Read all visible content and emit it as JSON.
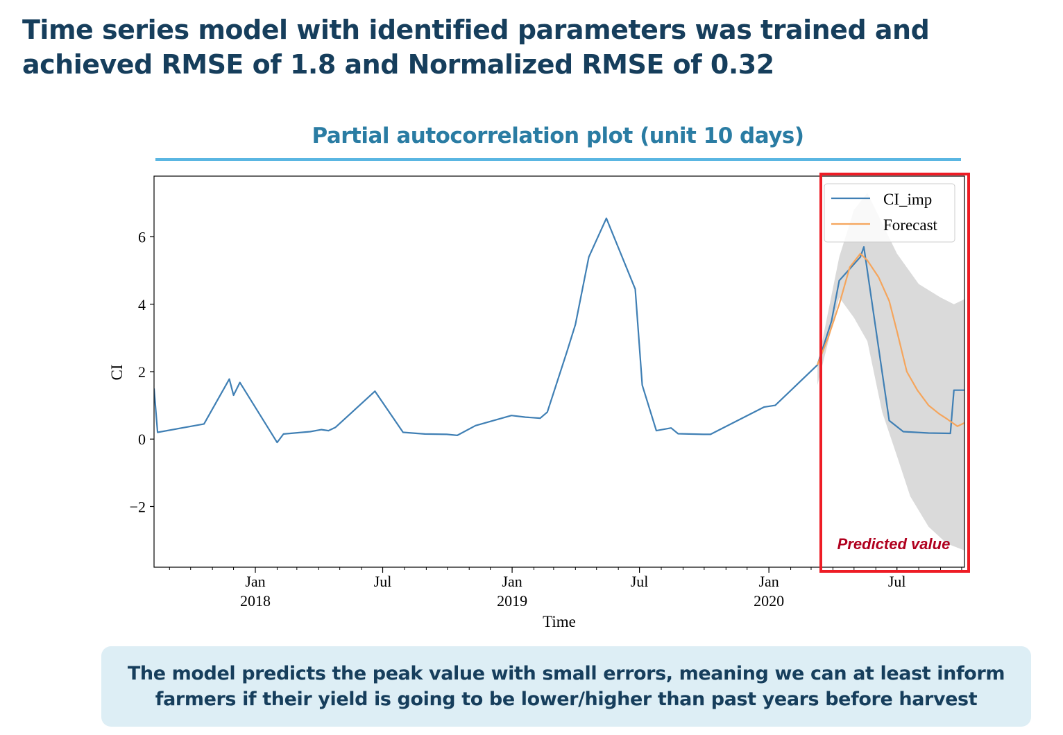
{
  "slide": {
    "title": "Time series model with identified parameters was trained and achieved RMSE of 1.8 and Normalized RMSE of 0.32",
    "subtitle": "Partial autocorrelation plot (unit 10 days)",
    "callout": "The model predicts the peak value with small errors, meaning we can at least inform farmers if their yield is going to be lower/higher than past years before harvest",
    "annotation": "Predicted value",
    "annotation_color": "#b0001e",
    "box_color": "#ee1c25"
  },
  "chart_data": {
    "type": "line",
    "xlabel": "Time",
    "ylabel": "CI",
    "xlim": [
      "2017-08-10",
      "2020-10-05"
    ],
    "ylim": [
      -3.8,
      7.8
    ],
    "yticks": [
      -2,
      0,
      2,
      4,
      6
    ],
    "xticks": [
      {
        "date": "2018-01-01",
        "label": "Jan",
        "year": "2018"
      },
      {
        "date": "2018-07-01",
        "label": "Jul",
        "year": ""
      },
      {
        "date": "2019-01-01",
        "label": "Jan",
        "year": "2019"
      },
      {
        "date": "2019-07-01",
        "label": "Jul",
        "year": ""
      },
      {
        "date": "2020-01-01",
        "label": "Jan",
        "year": "2020"
      },
      {
        "date": "2020-07-01",
        "label": "Jul",
        "year": ""
      }
    ],
    "grid": false,
    "legend_position": "top-right",
    "series": [
      {
        "name": "CI_imp",
        "color": "#3f7fb4",
        "points": [
          [
            "2017-08-10",
            1.5
          ],
          [
            "2017-08-15",
            0.2
          ],
          [
            "2017-10-20",
            0.45
          ],
          [
            "2017-11-25",
            1.78
          ],
          [
            "2017-12-01",
            1.3
          ],
          [
            "2017-12-10",
            1.68
          ],
          [
            "2018-02-01",
            -0.1
          ],
          [
            "2018-02-10",
            0.15
          ],
          [
            "2018-03-20",
            0.22
          ],
          [
            "2018-04-05",
            0.28
          ],
          [
            "2018-04-15",
            0.25
          ],
          [
            "2018-04-25",
            0.35
          ],
          [
            "2018-06-20",
            1.42
          ],
          [
            "2018-07-30",
            0.2
          ],
          [
            "2018-08-30",
            0.15
          ],
          [
            "2018-09-30",
            0.14
          ],
          [
            "2018-10-15",
            0.11
          ],
          [
            "2018-11-10",
            0.4
          ],
          [
            "2018-12-31",
            0.7
          ],
          [
            "2019-01-20",
            0.65
          ],
          [
            "2019-02-10",
            0.62
          ],
          [
            "2019-02-20",
            0.8
          ],
          [
            "2019-03-20",
            2.6
          ],
          [
            "2019-04-01",
            3.4
          ],
          [
            "2019-04-20",
            5.4
          ],
          [
            "2019-05-15",
            6.55
          ],
          [
            "2019-06-25",
            4.45
          ],
          [
            "2019-07-05",
            1.6
          ],
          [
            "2019-07-25",
            0.25
          ],
          [
            "2019-08-15",
            0.33
          ],
          [
            "2019-08-25",
            0.16
          ],
          [
            "2019-09-30",
            0.14
          ],
          [
            "2019-10-10",
            0.14
          ],
          [
            "2019-12-25",
            0.95
          ],
          [
            "2020-01-10",
            1.0
          ],
          [
            "2020-03-10",
            2.2
          ],
          [
            "2020-03-30",
            3.5
          ],
          [
            "2020-04-10",
            4.7
          ],
          [
            "2020-05-10",
            5.4
          ],
          [
            "2020-05-15",
            5.7
          ],
          [
            "2020-06-20",
            0.55
          ],
          [
            "2020-07-10",
            0.22
          ],
          [
            "2020-08-15",
            0.18
          ],
          [
            "2020-09-15",
            0.17
          ],
          [
            "2020-09-20",
            1.45
          ],
          [
            "2020-10-05",
            1.45
          ]
        ]
      },
      {
        "name": "Forecast",
        "color": "#f5a55c",
        "points": [
          [
            "2020-03-10",
            2.2
          ],
          [
            "2020-03-25",
            3.0
          ],
          [
            "2020-04-10",
            4.0
          ],
          [
            "2020-04-25",
            5.1
          ],
          [
            "2020-05-10",
            5.5
          ],
          [
            "2020-05-20",
            5.3
          ],
          [
            "2020-06-05",
            4.8
          ],
          [
            "2020-06-20",
            4.1
          ],
          [
            "2020-07-01",
            3.2
          ],
          [
            "2020-07-15",
            2.0
          ],
          [
            "2020-07-30",
            1.45
          ],
          [
            "2020-08-15",
            1.0
          ],
          [
            "2020-08-30",
            0.75
          ],
          [
            "2020-09-10",
            0.6
          ],
          [
            "2020-09-25",
            0.38
          ],
          [
            "2020-10-05",
            0.48
          ]
        ]
      }
    ],
    "confidence_band": {
      "color": "#d6d6d6",
      "upper": [
        [
          "2020-03-10",
          2.2
        ],
        [
          "2020-04-10",
          5.4
        ],
        [
          "2020-05-01",
          6.8
        ],
        [
          "2020-05-20",
          7.3
        ],
        [
          "2020-06-10",
          6.4
        ],
        [
          "2020-07-01",
          5.5
        ],
        [
          "2020-08-01",
          4.6
        ],
        [
          "2020-09-01",
          4.2
        ],
        [
          "2020-09-20",
          4.0
        ],
        [
          "2020-10-05",
          4.15
        ]
      ],
      "lower": [
        [
          "2020-03-10",
          1.6
        ],
        [
          "2020-04-10",
          4.2
        ],
        [
          "2020-05-01",
          3.6
        ],
        [
          "2020-05-20",
          2.9
        ],
        [
          "2020-06-10",
          0.8
        ],
        [
          "2020-07-01",
          -0.5
        ],
        [
          "2020-07-20",
          -1.7
        ],
        [
          "2020-08-15",
          -2.6
        ],
        [
          "2020-09-10",
          -3.1
        ],
        [
          "2020-10-05",
          -3.3
        ]
      ]
    }
  }
}
